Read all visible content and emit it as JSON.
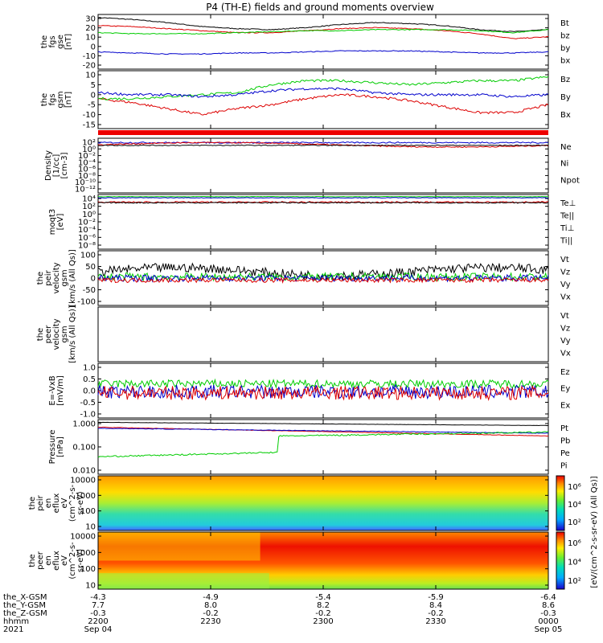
{
  "title": "P4 (TH-E) fields and ground moments overview",
  "colors": {
    "black": "#000000",
    "red": "#dd0000",
    "green": "#00cc00",
    "blue": "#0000cc"
  },
  "panels": [
    {
      "id": "fgs-gse",
      "ylabel": [
        "the",
        "fgs",
        "gse",
        "[nT]"
      ],
      "ticks": [
        "30",
        "20",
        "10",
        "0",
        "-10",
        "-20"
      ],
      "legend": [
        {
          "t": "Bt",
          "c": "black"
        },
        {
          "t": "bz",
          "c": "red"
        },
        {
          "t": "by",
          "c": "green"
        },
        {
          "t": "bx",
          "c": "blue"
        }
      ]
    },
    {
      "id": "fgs-gsm",
      "ylabel": [
        "the",
        "fgs",
        "gsm",
        "[nT]"
      ],
      "ticks": [
        "10",
        "5",
        "0",
        "-5",
        "-10",
        "-15"
      ],
      "legend": [
        {
          "t": "Bz",
          "c": "red"
        },
        {
          "t": "By",
          "c": "green"
        },
        {
          "t": "Bx",
          "c": "blue"
        }
      ]
    },
    {
      "id": "density",
      "ylabel": [
        "Density",
        "[1/cc]",
        "[cm-3]"
      ],
      "ticks": [
        "10²",
        "10⁰",
        "10⁻²",
        "10⁻⁴",
        "10⁻⁶",
        "10⁻⁸",
        "10⁻¹⁰",
        "10⁻¹²"
      ],
      "legend": [
        {
          "t": "Ne",
          "c": "red"
        },
        {
          "t": "Ni",
          "c": "black"
        },
        {
          "t": "Npot",
          "c": "blue"
        }
      ]
    },
    {
      "id": "temperature",
      "ylabel": [
        "moqt3",
        "[eV]"
      ],
      "ticks": [
        "10⁴",
        "10²",
        "10⁰",
        "10⁻²",
        "10⁻⁴",
        "10⁻⁶",
        "10⁻⁸"
      ],
      "legend": [
        {
          "t": "Te⊥",
          "c": "red"
        },
        {
          "t": "Te||",
          "c": "black"
        },
        {
          "t": "Ti⊥",
          "c": "blue"
        },
        {
          "t": "Ti||",
          "c": "green"
        }
      ]
    },
    {
      "id": "peir-velocity",
      "ylabel": [
        "the",
        "peir",
        "velocity",
        "gsm",
        "[km/s (All Qs)]"
      ],
      "ticks": [
        "100",
        "50",
        "0",
        "-50",
        "-100"
      ],
      "legend": [
        {
          "t": "Vt",
          "c": "black"
        },
        {
          "t": "Vz",
          "c": "red"
        },
        {
          "t": "Vy",
          "c": "green"
        },
        {
          "t": "Vx",
          "c": "blue"
        }
      ]
    },
    {
      "id": "peer-velocity",
      "ylabel": [
        "the",
        "peer",
        "velocity",
        "gsm",
        "[km/s (All Qs)]"
      ],
      "ticks": [],
      "legend": [
        {
          "t": "Vt",
          "c": "black"
        },
        {
          "t": "Vz",
          "c": "red"
        },
        {
          "t": "Vy",
          "c": "green"
        },
        {
          "t": "Vx",
          "c": "blue"
        }
      ]
    },
    {
      "id": "efield",
      "ylabel": [
        "E=-VxB",
        "[mV/m]"
      ],
      "ticks": [
        "1.0",
        "0.5",
        "0.0",
        "-0.5",
        "-1.0"
      ],
      "legend": [
        {
          "t": "Ez",
          "c": "red"
        },
        {
          "t": "Ey",
          "c": "green"
        },
        {
          "t": "Ex",
          "c": "blue"
        }
      ]
    },
    {
      "id": "pressure",
      "ylabel": [
        "Pressure",
        "[nPa]"
      ],
      "ticks": [
        "1.000",
        "0.100",
        "0.010"
      ],
      "legend": [
        {
          "t": "Pt",
          "c": "black"
        },
        {
          "t": "Pb",
          "c": "red"
        },
        {
          "t": "Pe",
          "c": "green"
        },
        {
          "t": "Pi",
          "c": "blue"
        }
      ]
    },
    {
      "id": "peir-spec",
      "ylabel": [
        "the",
        "peir",
        "en",
        "eflux",
        "eV",
        "(cm^2-s-",
        "sr-eV)"
      ],
      "ticks": [
        "10000",
        "1000",
        "100",
        "10"
      ],
      "legend": []
    },
    {
      "id": "peer-spec",
      "ylabel": [
        "the",
        "peer",
        "en",
        "eflux",
        "eV",
        "(cm^2-s-",
        "sr-eV)"
      ],
      "ticks": [
        "10000",
        "1000",
        "100",
        "10"
      ],
      "legend": []
    }
  ],
  "colorbar": {
    "ticks": [
      "10⁶",
      "10⁴",
      "10²"
    ],
    "ticks2": [
      "10⁶",
      "10⁴",
      "10²"
    ],
    "label": "[eV/(cm^2-s-sr-eV) (All Qs)]"
  },
  "axis": {
    "rows": [
      {
        "label": "the_X-GSM",
        "values": [
          "-4.3",
          "-4.9",
          "-5.4",
          "-5.9",
          "-6.4"
        ]
      },
      {
        "label": "the_Y-GSM",
        "values": [
          "7.7",
          "8.0",
          "8.2",
          "8.4",
          "8.6"
        ]
      },
      {
        "label": "the_Z-GSM",
        "values": [
          "-0.3",
          "-0.2",
          "-0.2",
          "-0.2",
          "-0.3"
        ]
      },
      {
        "label": "hhmm",
        "values": [
          "2200",
          "2230",
          "2300",
          "2330",
          "0000"
        ]
      },
      {
        "label": "2021",
        "values": [
          "Sep 04",
          "",
          "",
          "",
          "Sep 05"
        ]
      }
    ]
  },
  "chart_data": {
    "type": "line",
    "title": "P4 (TH-E) fields and ground moments overview",
    "x_ticks": [
      "2200",
      "2230",
      "2300",
      "2330",
      "0000"
    ],
    "series": [
      {
        "panel": "fgs-gse",
        "name": "Bt",
        "values": [
          29,
          27,
          24,
          20,
          18,
          17,
          19,
          22,
          24,
          23,
          21,
          17,
          15,
          17
        ]
      },
      {
        "panel": "fgs-gse",
        "name": "bz",
        "values": [
          21,
          20,
          18,
          16,
          14,
          14,
          16,
          18,
          19,
          18,
          16,
          13,
          8,
          10
        ]
      },
      {
        "panel": "fgs-gse",
        "name": "by",
        "values": [
          14,
          13,
          13,
          13,
          14,
          15,
          16,
          16,
          17,
          17,
          17,
          16,
          14,
          17
        ]
      },
      {
        "panel": "fgs-gse",
        "name": "bx",
        "values": [
          -5,
          -6,
          -7,
          -7,
          -6,
          -6,
          -5,
          -4,
          -4,
          -4,
          -5,
          -6,
          -6,
          -5
        ]
      },
      {
        "panel": "fgs-gsm",
        "name": "Bz",
        "values": [
          -3,
          -5,
          -8,
          -11,
          -8,
          -6,
          -3,
          -1,
          -2,
          -4,
          -7,
          -10,
          -10,
          -6
        ]
      },
      {
        "panel": "fgs-gsm",
        "name": "By",
        "values": [
          -3,
          -3,
          -2,
          -1,
          0,
          4,
          6,
          6,
          5,
          4,
          5,
          6,
          6,
          8
        ]
      },
      {
        "panel": "fgs-gsm",
        "name": "Bx",
        "values": [
          0,
          -1,
          -1,
          -2,
          -1,
          1,
          2,
          2,
          0,
          -1,
          -1,
          -1,
          -2,
          -1
        ]
      }
    ]
  }
}
